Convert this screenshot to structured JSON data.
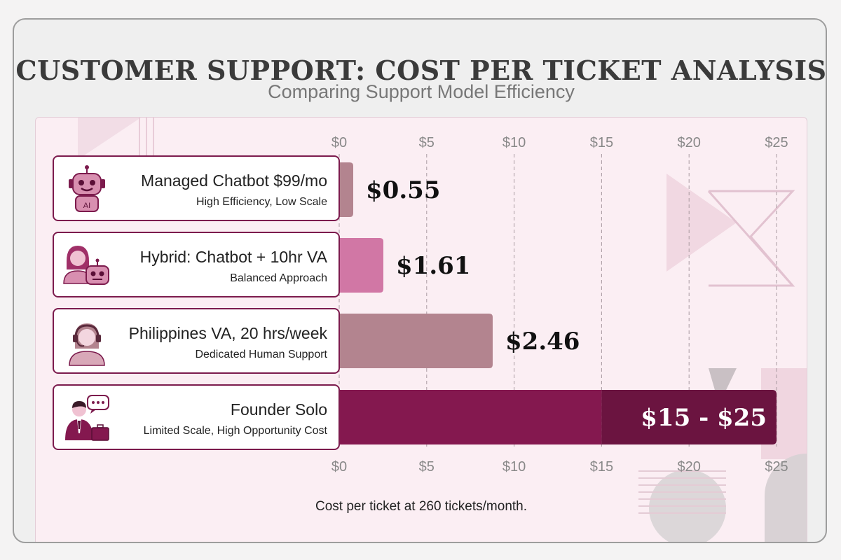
{
  "title": "CUSTOMER SUPPORT: COST PER TICKET ANALYSIS",
  "subtitle": "Comparing Support Model Efficiency",
  "footnote": "Cost per ticket at 260 tickets/month.",
  "icons": [
    "robot-ai-icon",
    "person-with-robot-icon",
    "headset-agent-icon",
    "founder-with-chat-icon"
  ],
  "colors": {
    "bar_chatbot": "#b3848f",
    "bar_hybrid": "#d177a5",
    "bar_va": "#b3848f",
    "bar_founder": "#84184f",
    "bar_founder_high": "#6b1440",
    "label_border": "#7c1b4d"
  },
  "chart_data": {
    "type": "bar",
    "orientation": "horizontal",
    "categories": [
      "Managed Chatbot $99/mo",
      "Hybrid: Chatbot + 10hr VA",
      "Philippines VA, 20 hrs/week",
      "Founder Solo"
    ],
    "descriptions": [
      "High Efficiency, Low Scale",
      "Balanced Approach",
      "Dedicated Human Support",
      "Limited Scale, High Opportunity Cost"
    ],
    "values": [
      0.55,
      1.61,
      2.46,
      [
        15,
        25
      ]
    ],
    "data_labels": [
      "$0.55",
      "$1.61",
      "$2.46",
      "$15 - $25"
    ],
    "xlim": [
      0,
      25
    ],
    "xticks": [
      "$0",
      "$5",
      "$10",
      "$15",
      "$20",
      "$25"
    ],
    "grid": true
  }
}
